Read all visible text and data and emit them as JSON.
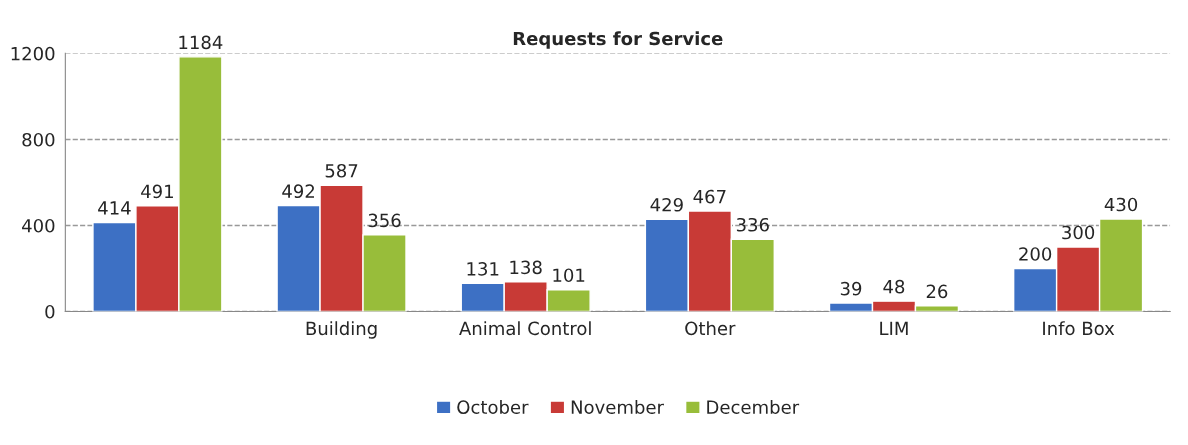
{
  "chart_data": {
    "type": "bar",
    "title": "Requests for Service",
    "categories": [
      null,
      "Building",
      "Animal Control",
      "Other",
      "LIM",
      "Info Box"
    ],
    "series": [
      {
        "name": "October",
        "color": "#3d70c4",
        "values": [
          414,
          492,
          131,
          429,
          39,
          200
        ]
      },
      {
        "name": "November",
        "color": "#c83a36",
        "values": [
          491,
          587,
          138,
          467,
          48,
          300
        ]
      },
      {
        "name": "December",
        "color": "#98bd3a",
        "values": [
          1184,
          356,
          101,
          336,
          26,
          430
        ]
      }
    ],
    "ylim": [
      0,
      1200
    ],
    "yticks": [
      0,
      400,
      800,
      1200
    ],
    "grid": "y",
    "legend": "bottom",
    "data_labels": true
  }
}
